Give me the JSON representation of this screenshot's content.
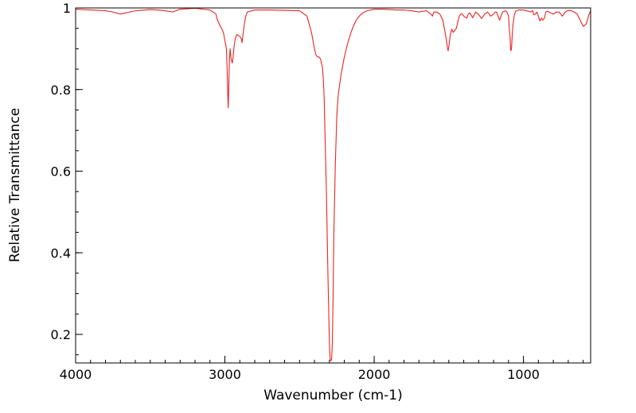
{
  "chart_data": {
    "type": "line",
    "title": "",
    "xlabel": "Wavenumber (cm-1)",
    "ylabel": "Relative Transmittance",
    "xlim": [
      4000,
      550
    ],
    "ylim": [
      0.13,
      1.0
    ],
    "x_reversed": true,
    "grid": false,
    "line_color": "#ee2222",
    "x_ticks": [
      {
        "value": 4000,
        "label": "4000"
      },
      {
        "value": 3000,
        "label": "3000"
      },
      {
        "value": 2000,
        "label": "2000"
      },
      {
        "value": 1000,
        "label": "1000"
      }
    ],
    "y_ticks": [
      {
        "value": 1.0,
        "label": "1"
      },
      {
        "value": 0.8,
        "label": "0.8"
      },
      {
        "value": 0.6,
        "label": "0.6"
      },
      {
        "value": 0.4,
        "label": "0.4"
      },
      {
        "value": 0.2,
        "label": "0.2"
      }
    ],
    "x_minor_step": 100,
    "y_minor_step": 0.05,
    "series": [
      {
        "name": "",
        "x": [
          4000,
          3900,
          3800,
          3750,
          3700,
          3600,
          3500,
          3450,
          3400,
          3350,
          3300,
          3200,
          3100,
          3060,
          3050,
          3030,
          3010,
          2990,
          2985,
          2981,
          2978,
          2975,
          2970,
          2965,
          2960,
          2955,
          2950,
          2945,
          2940,
          2935,
          2930,
          2920,
          2900,
          2890,
          2885,
          2880,
          2870,
          2860,
          2850,
          2800,
          2700,
          2600,
          2500,
          2450,
          2420,
          2400,
          2390,
          2380,
          2370,
          2360,
          2350,
          2345,
          2340,
          2335,
          2330,
          2320,
          2310,
          2300,
          2295,
          2290,
          2285,
          2280,
          2275,
          2270,
          2260,
          2250,
          2240,
          2220,
          2200,
          2180,
          2160,
          2140,
          2120,
          2100,
          2080,
          2050,
          2000,
          1950,
          1900,
          1850,
          1800,
          1750,
          1700,
          1650,
          1620,
          1610,
          1600,
          1580,
          1560,
          1540,
          1520,
          1510,
          1505,
          1500,
          1490,
          1480,
          1470,
          1460,
          1450,
          1440,
          1430,
          1420,
          1410,
          1400,
          1380,
          1370,
          1360,
          1340,
          1320,
          1300,
          1280,
          1260,
          1240,
          1220,
          1200,
          1190,
          1180,
          1170,
          1160,
          1150,
          1140,
          1120,
          1110,
          1100,
          1095,
          1090,
          1085,
          1080,
          1075,
          1070,
          1060,
          1050,
          1030,
          1000,
          950,
          940,
          930,
          920,
          910,
          900,
          890,
          880,
          870,
          860,
          850,
          840,
          800,
          780,
          760,
          740,
          720,
          700,
          680,
          660,
          640,
          620,
          600,
          580,
          560,
          550
        ],
        "y": [
          0.997,
          0.995,
          0.993,
          0.99,
          0.985,
          0.993,
          0.996,
          0.995,
          0.993,
          0.99,
          0.997,
          0.999,
          0.995,
          0.985,
          0.97,
          0.955,
          0.94,
          0.9,
          0.85,
          0.79,
          0.755,
          0.79,
          0.87,
          0.9,
          0.88,
          0.87,
          0.865,
          0.88,
          0.9,
          0.915,
          0.925,
          0.935,
          0.93,
          0.925,
          0.915,
          0.93,
          0.96,
          0.98,
          0.99,
          0.995,
          0.995,
          0.994,
          0.993,
          0.98,
          0.94,
          0.9,
          0.885,
          0.88,
          0.88,
          0.875,
          0.86,
          0.85,
          0.82,
          0.78,
          0.7,
          0.55,
          0.35,
          0.18,
          0.14,
          0.135,
          0.14,
          0.18,
          0.3,
          0.45,
          0.62,
          0.74,
          0.79,
          0.84,
          0.88,
          0.91,
          0.935,
          0.955,
          0.97,
          0.98,
          0.987,
          0.993,
          0.997,
          0.997,
          0.996,
          0.995,
          0.995,
          0.993,
          0.99,
          0.993,
          0.985,
          0.98,
          0.99,
          0.99,
          0.985,
          0.97,
          0.93,
          0.905,
          0.895,
          0.905,
          0.935,
          0.948,
          0.94,
          0.945,
          0.95,
          0.965,
          0.98,
          0.985,
          0.985,
          0.98,
          0.975,
          0.985,
          0.988,
          0.976,
          0.99,
          0.984,
          0.974,
          0.985,
          0.99,
          0.98,
          0.985,
          0.99,
          0.99,
          0.98,
          0.97,
          0.98,
          0.99,
          0.993,
          0.99,
          0.98,
          0.95,
          0.93,
          0.895,
          0.9,
          0.935,
          0.96,
          0.985,
          0.993,
          0.995,
          0.995,
          0.99,
          0.994,
          0.983,
          0.985,
          0.99,
          0.98,
          0.968,
          0.975,
          0.97,
          0.975,
          0.99,
          0.992,
          0.985,
          0.99,
          0.99,
          0.98,
          0.99,
          0.994,
          0.993,
          0.99,
          0.985,
          0.97,
          0.955,
          0.96,
          0.985,
          0.993
        ]
      }
    ]
  }
}
